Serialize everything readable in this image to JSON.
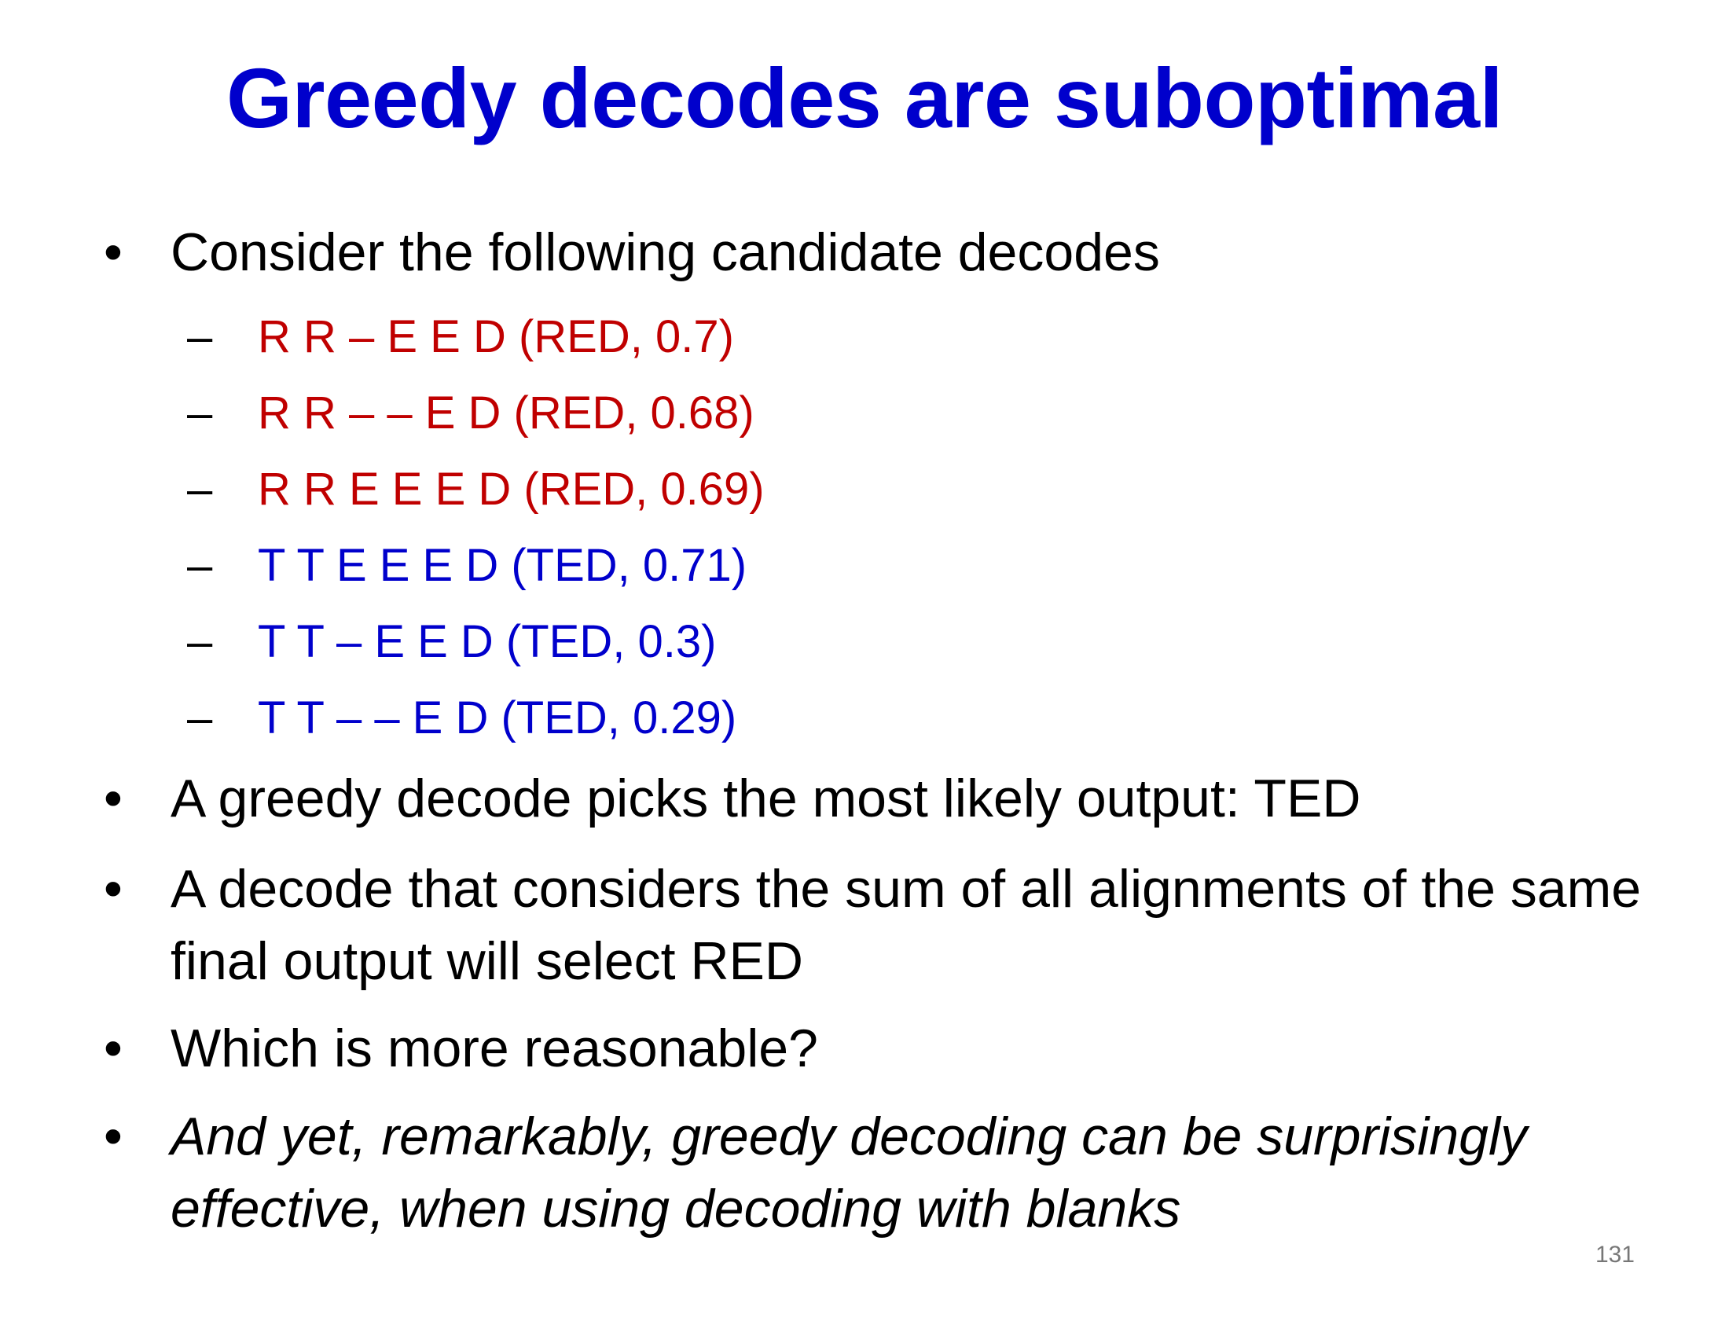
{
  "title": "Greedy decodes are suboptimal",
  "bullets": {
    "b1": "Consider the following candidate decodes",
    "b2": "A greedy decode picks the most likely output: TED",
    "b3": "A decode that considers the sum of all alignments of the same final output will select RED",
    "b4": "Which is more reasonable?",
    "b5": "And yet, remarkably, greedy decoding can be surprisingly effective, when using decoding with blanks"
  },
  "bullet_symbol": "•",
  "dash_symbol": "–",
  "candidates": [
    {
      "text": "R R – E E D (RED, 0.7)",
      "color": "#c00000"
    },
    {
      "text": "R R – – E D (RED, 0.68)",
      "color": "#c00000"
    },
    {
      "text": "R R E E E D (RED, 0.69)",
      "color": "#c00000"
    },
    {
      "text": "T T E E E D (TED, 0.71)",
      "color": "#0000cc"
    },
    {
      "text": "T T – E E D (TED, 0.3)",
      "color": "#0000cc"
    },
    {
      "text": "T T – – E D (TED, 0.29)",
      "color": "#0000cc"
    }
  ],
  "page_number": "131"
}
